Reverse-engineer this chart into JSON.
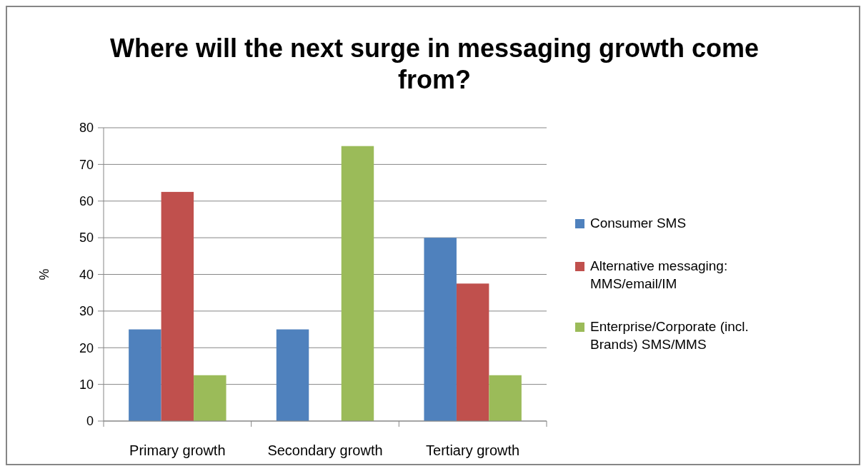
{
  "chart_data": {
    "type": "bar",
    "title": "Where will the next surge in messaging growth come from?",
    "ylabel": "%",
    "categories": [
      "Primary growth",
      "Secondary growth",
      "Tertiary growth"
    ],
    "series": [
      {
        "name": "Consumer SMS",
        "color": "#4f81bd",
        "values": [
          25,
          25,
          50
        ]
      },
      {
        "name": "Alternative messaging: MMS/email/IM",
        "color": "#c0504d",
        "values": [
          62.5,
          0,
          37.5
        ]
      },
      {
        "name": "Enterprise/Corporate (incl. Brands) SMS/MMS",
        "color": "#9bbb59",
        "values": [
          12.5,
          75,
          12.5
        ]
      }
    ],
    "ylim": [
      0,
      80
    ],
    "yticks": [
      0,
      10,
      20,
      30,
      40,
      50,
      60,
      70,
      80
    ],
    "grid": "y",
    "legend": "right"
  }
}
